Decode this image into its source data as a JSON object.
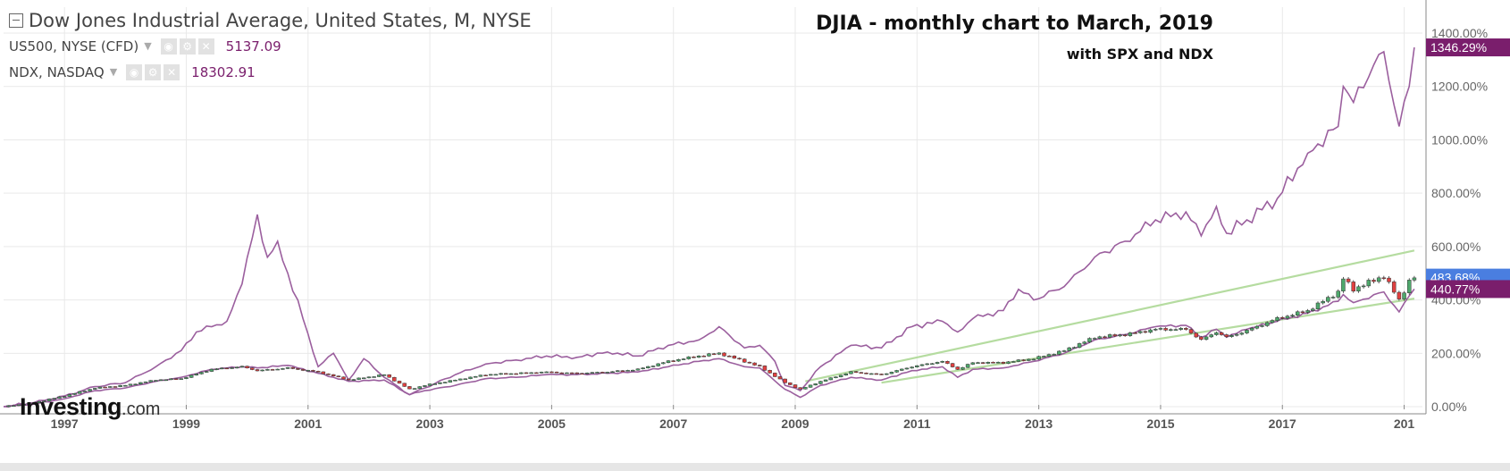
{
  "legend": {
    "main": "Dow Jones Industrial Average, United States, M, NYSE",
    "series2_name": "US500, NYSE (CFD)",
    "series2_value": "5137.09",
    "series3_name": "NDX, NASDAQ",
    "series3_value": "18302.91"
  },
  "annotation": {
    "title": "DJIA - monthly chart to March, 2019",
    "subtitle": "with SPX and NDX"
  },
  "logo": {
    "main": "Investing",
    "domain": ".com"
  },
  "colors": {
    "spx_line": "#9b5f9e",
    "ndx_line": "#9b5f9e",
    "trendline": "#b5dca0",
    "candle_up": "#4ea86c",
    "candle_down": "#e04040",
    "badge_ndx": "#7a1e6c",
    "badge_djia": "#4a7ee0",
    "badge_spx": "#7a1e6c",
    "grid": "#e9e9e9",
    "axis_text": "#666"
  },
  "chart_data": {
    "type": "line",
    "x_axis": {
      "type": "date",
      "ticks": [
        "1997",
        "1999",
        "2001",
        "2003",
        "2005",
        "2007",
        "2009",
        "2011",
        "2013",
        "2015",
        "2017",
        "201"
      ]
    },
    "y_axis": {
      "unit": "percent change",
      "ticks": [
        "0.00%",
        "200.00%",
        "400.00%",
        "600.00%",
        "800.00%",
        "1000.00%",
        "1200.00%",
        "1400.00%"
      ],
      "ylim": [
        -40,
        1420
      ]
    },
    "price_badges": [
      {
        "label": "1346.29%",
        "value": 1346.29,
        "series": "NDX"
      },
      {
        "label": "483.68%",
        "value": 483.68,
        "series": "DJIA"
      },
      {
        "label": "440.77%",
        "value": 440.77,
        "series": "US500"
      }
    ],
    "series": [
      {
        "name": "NDX, NASDAQ",
        "kind": "line",
        "points": [
          [
            "1996-01",
            0
          ],
          [
            "1996-07",
            15
          ],
          [
            "1997-01",
            40
          ],
          [
            "1997-07",
            75
          ],
          [
            "1998-01",
            90
          ],
          [
            "1998-07",
            150
          ],
          [
            "1998-12",
            210
          ],
          [
            "1999-03",
            280
          ],
          [
            "1999-06",
            300
          ],
          [
            "1999-09",
            320
          ],
          [
            "1999-12",
            460
          ],
          [
            "2000-03",
            720
          ],
          [
            "2000-05",
            560
          ],
          [
            "2000-07",
            620
          ],
          [
            "2000-09",
            500
          ],
          [
            "2000-12",
            330
          ],
          [
            "2001-03",
            150
          ],
          [
            "2001-06",
            200
          ],
          [
            "2001-09",
            100
          ],
          [
            "2001-12",
            180
          ],
          [
            "2002-04",
            110
          ],
          [
            "2002-09",
            45
          ],
          [
            "2002-12",
            70
          ],
          [
            "2003-06",
            120
          ],
          [
            "2003-12",
            160
          ],
          [
            "2004-06",
            175
          ],
          [
            "2004-12",
            190
          ],
          [
            "2005-06",
            185
          ],
          [
            "2005-12",
            205
          ],
          [
            "2006-06",
            190
          ],
          [
            "2006-12",
            230
          ],
          [
            "2007-06",
            250
          ],
          [
            "2007-10",
            300
          ],
          [
            "2008-03",
            220
          ],
          [
            "2008-06",
            230
          ],
          [
            "2008-09",
            170
          ],
          [
            "2008-11",
            80
          ],
          [
            "2009-02",
            60
          ],
          [
            "2009-06",
            150
          ],
          [
            "2009-12",
            230
          ],
          [
            "2010-06",
            220
          ],
          [
            "2010-12",
            300
          ],
          [
            "2011-06",
            320
          ],
          [
            "2011-09",
            280
          ],
          [
            "2011-12",
            330
          ],
          [
            "2012-06",
            360
          ],
          [
            "2012-09",
            440
          ],
          [
            "2012-12",
            400
          ],
          [
            "2013-06",
            450
          ],
          [
            "2013-12",
            560
          ],
          [
            "2014-06",
            620
          ],
          [
            "2014-12",
            700
          ],
          [
            "2015-06",
            730
          ],
          [
            "2015-09",
            640
          ],
          [
            "2015-12",
            750
          ],
          [
            "2016-02",
            650
          ],
          [
            "2016-06",
            700
          ],
          [
            "2016-12",
            780
          ],
          [
            "2017-06",
            950
          ],
          [
            "2017-12",
            1050
          ],
          [
            "2018-01",
            1200
          ],
          [
            "2018-03",
            1140
          ],
          [
            "2018-08",
            1320
          ],
          [
            "2018-09",
            1330
          ],
          [
            "2018-12",
            1050
          ],
          [
            "2019-02",
            1200
          ],
          [
            "2019-03",
            1346.29
          ]
        ]
      },
      {
        "name": "US500, NYSE (CFD)",
        "kind": "line",
        "points": [
          [
            "1996-01",
            0
          ],
          [
            "1996-07",
            10
          ],
          [
            "1997-01",
            30
          ],
          [
            "1997-07",
            60
          ],
          [
            "1998-01",
            70
          ],
          [
            "1998-07",
            95
          ],
          [
            "1998-12",
            110
          ],
          [
            "1999-06",
            140
          ],
          [
            "1999-12",
            150
          ],
          [
            "2000-03",
            145
          ],
          [
            "2000-09",
            155
          ],
          [
            "2001-03",
            125
          ],
          [
            "2001-09",
            95
          ],
          [
            "2002-04",
            100
          ],
          [
            "2002-09",
            45
          ],
          [
            "2002-12",
            60
          ],
          [
            "2003-06",
            80
          ],
          [
            "2003-12",
            105
          ],
          [
            "2004-06",
            110
          ],
          [
            "2004-12",
            120
          ],
          [
            "2005-06",
            120
          ],
          [
            "2005-12",
            125
          ],
          [
            "2006-06",
            130
          ],
          [
            "2006-12",
            150
          ],
          [
            "2007-06",
            170
          ],
          [
            "2007-10",
            180
          ],
          [
            "2008-03",
            150
          ],
          [
            "2008-06",
            145
          ],
          [
            "2008-11",
            65
          ],
          [
            "2009-02",
            35
          ],
          [
            "2009-06",
            80
          ],
          [
            "2009-12",
            110
          ],
          [
            "2010-06",
            100
          ],
          [
            "2010-12",
            135
          ],
          [
            "2011-06",
            150
          ],
          [
            "2011-09",
            110
          ],
          [
            "2011-12",
            140
          ],
          [
            "2012-06",
            145
          ],
          [
            "2012-12",
            170
          ],
          [
            "2013-06",
            200
          ],
          [
            "2013-12",
            250
          ],
          [
            "2014-06",
            270
          ],
          [
            "2014-12",
            300
          ],
          [
            "2015-06",
            305
          ],
          [
            "2015-09",
            260
          ],
          [
            "2015-12",
            290
          ],
          [
            "2016-02",
            260
          ],
          [
            "2016-06",
            290
          ],
          [
            "2016-12",
            320
          ],
          [
            "2017-06",
            350
          ],
          [
            "2017-12",
            395
          ],
          [
            "2018-01",
            420
          ],
          [
            "2018-03",
            390
          ],
          [
            "2018-09",
            430
          ],
          [
            "2018-12",
            355
          ],
          [
            "2019-02",
            415
          ],
          [
            "2019-03",
            440.77
          ]
        ]
      },
      {
        "name": "Dow Jones Industrial Average, United States, M, NYSE",
        "kind": "candlestick",
        "points": [
          [
            "1996-01",
            0
          ],
          [
            "1996-07",
            15
          ],
          [
            "1997-01",
            40
          ],
          [
            "1997-07",
            70
          ],
          [
            "1998-01",
            80
          ],
          [
            "1998-07",
            100
          ],
          [
            "1998-12",
            105
          ],
          [
            "1999-06",
            140
          ],
          [
            "1999-12",
            150
          ],
          [
            "2000-03",
            135
          ],
          [
            "2000-09",
            145
          ],
          [
            "2001-03",
            130
          ],
          [
            "2001-09",
            100
          ],
          [
            "2002-04",
            120
          ],
          [
            "2002-09",
            65
          ],
          [
            "2002-12",
            80
          ],
          [
            "2003-06",
            100
          ],
          [
            "2003-12",
            120
          ],
          [
            "2004-06",
            125
          ],
          [
            "2004-12",
            130
          ],
          [
            "2005-06",
            125
          ],
          [
            "2005-12",
            130
          ],
          [
            "2006-06",
            140
          ],
          [
            "2006-12",
            170
          ],
          [
            "2007-06",
            190
          ],
          [
            "2007-10",
            200
          ],
          [
            "2008-03",
            170
          ],
          [
            "2008-06",
            150
          ],
          [
            "2008-11",
            90
          ],
          [
            "2009-02",
            65
          ],
          [
            "2009-06",
            95
          ],
          [
            "2009-12",
            130
          ],
          [
            "2010-06",
            120
          ],
          [
            "2010-12",
            150
          ],
          [
            "2011-06",
            170
          ],
          [
            "2011-09",
            140
          ],
          [
            "2011-12",
            165
          ],
          [
            "2012-06",
            165
          ],
          [
            "2012-12",
            180
          ],
          [
            "2013-06",
            210
          ],
          [
            "2013-12",
            260
          ],
          [
            "2014-06",
            270
          ],
          [
            "2014-12",
            290
          ],
          [
            "2015-06",
            290
          ],
          [
            "2015-09",
            250
          ],
          [
            "2015-12",
            280
          ],
          [
            "2016-02",
            260
          ],
          [
            "2016-06",
            285
          ],
          [
            "2016-12",
            330
          ],
          [
            "2017-06",
            360
          ],
          [
            "2017-12",
            430
          ],
          [
            "2018-01",
            480
          ],
          [
            "2018-03",
            440
          ],
          [
            "2018-09",
            490
          ],
          [
            "2018-12",
            400
          ],
          [
            "2019-02",
            470
          ],
          [
            "2019-03",
            483.68
          ]
        ]
      }
    ],
    "trendlines": [
      {
        "from": [
          "2009-03",
          95
        ],
        "to": [
          "2019-03",
          585
        ]
      },
      {
        "from": [
          "2010-06",
          90
        ],
        "to": [
          "2019-03",
          405
        ]
      }
    ]
  }
}
